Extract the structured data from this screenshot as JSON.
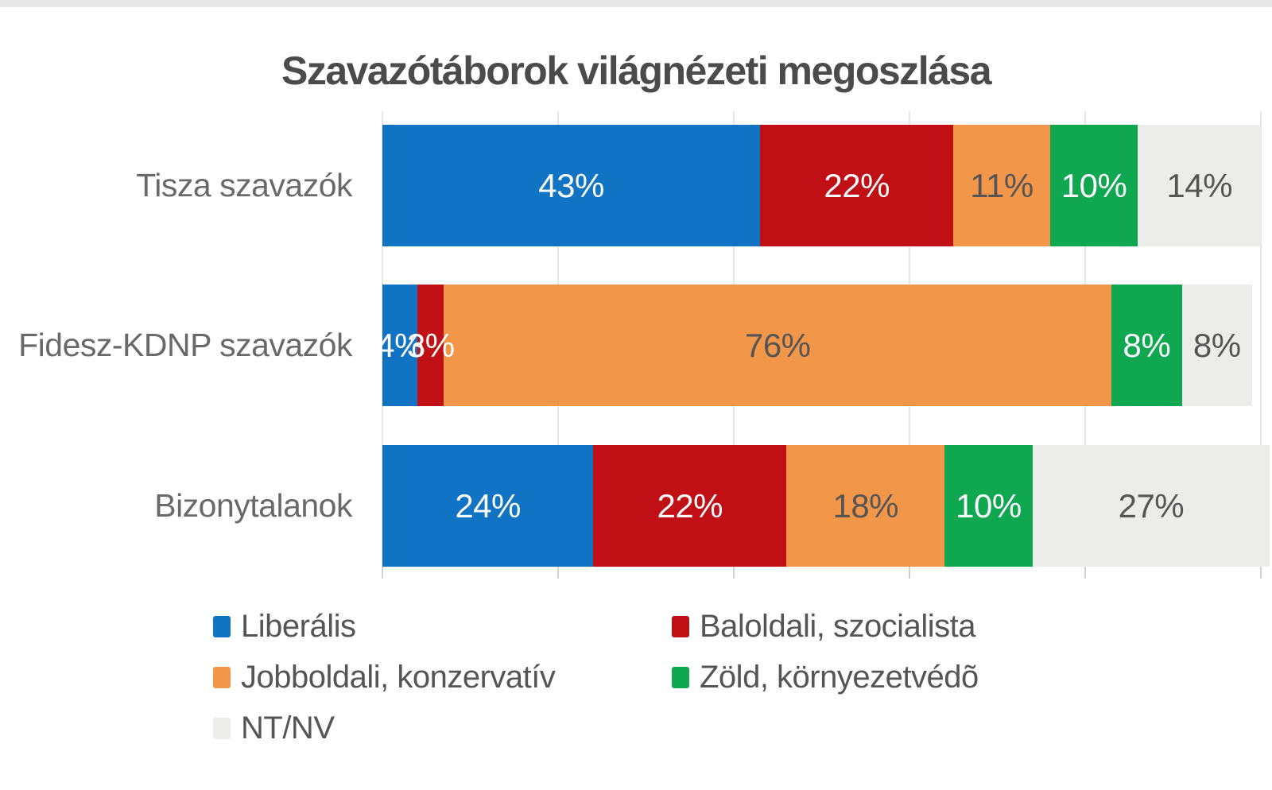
{
  "chart_data": {
    "type": "bar",
    "orientation": "horizontal",
    "stacked": true,
    "unit": "%",
    "title": "Szavazótáborok világnézeti megoszlása",
    "xlabel": "",
    "ylabel": "",
    "xlim": [
      0,
      100
    ],
    "gridlines_percent": [
      0,
      20,
      40,
      60,
      80,
      100
    ],
    "grid": "vertical",
    "legend_position": "bottom",
    "categories": [
      "Tisza szavazók",
      "Fidesz-KDNP szavazók",
      "Bizonytalanok"
    ],
    "series": [
      {
        "name": "Liberális",
        "color": "#1173c4",
        "label_color": "#ffffff",
        "values": [
          43,
          4,
          24
        ]
      },
      {
        "name": "Baloldali, szocialista",
        "color": "#c00f15",
        "label_color": "#ffffff",
        "values": [
          22,
          3,
          22
        ]
      },
      {
        "name": "Jobboldali, konzervatív",
        "color": "#f2964a",
        "label_color": "#555555",
        "values": [
          11,
          76,
          18
        ]
      },
      {
        "name": "Zöld, környezetvédõ",
        "color": "#0fa750",
        "label_color": "#ffffff",
        "values": [
          10,
          8,
          10
        ]
      },
      {
        "name": "NT/NV",
        "color": "#ececeb",
        "label_color": "#555555",
        "values": [
          14,
          8,
          27
        ]
      }
    ],
    "value_labels": [
      [
        "43%",
        "22%",
        "11%",
        "10%",
        "14%"
      ],
      [
        "4%",
        "3%",
        "76%",
        "8%",
        "8%"
      ],
      [
        "24%",
        "22%",
        "18%",
        "10%",
        "27%"
      ]
    ]
  }
}
